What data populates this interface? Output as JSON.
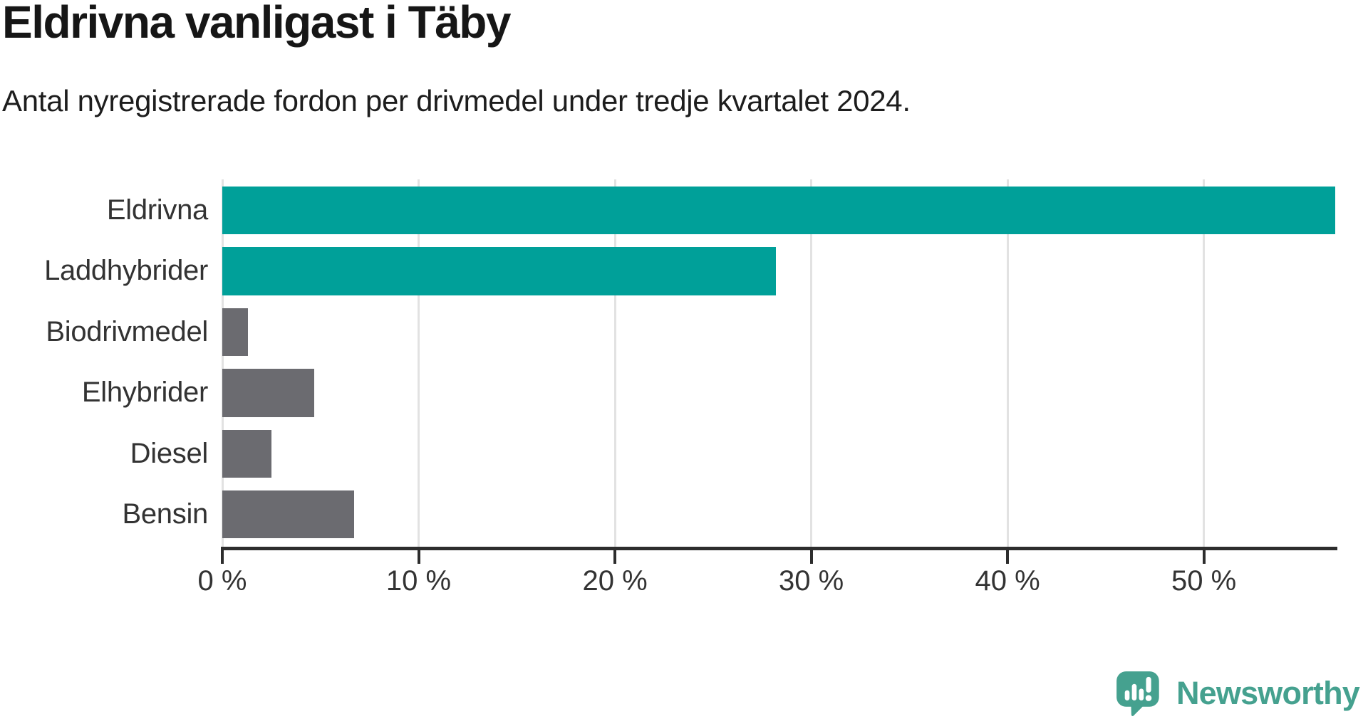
{
  "header": {
    "title": "Eldrivna vanligast i Täby",
    "subtitle": "Antal nyregistrerade fordon per drivmedel under tredje kvartalet 2024."
  },
  "chart_data": {
    "type": "bar",
    "orientation": "horizontal",
    "title": "Eldrivna vanligast i Täby",
    "subtitle": "Antal nyregistrerade fordon per drivmedel under tredje kvartalet 2024.",
    "categories": [
      "Eldrivna",
      "Laddhybrider",
      "Biodrivmedel",
      "Elhybrider",
      "Diesel",
      "Bensin"
    ],
    "values": [
      56.7,
      28.2,
      1.3,
      4.7,
      2.5,
      6.7
    ],
    "unit": "%",
    "xlabel": "",
    "ylabel": "",
    "xlim": [
      0,
      56.8
    ],
    "xticks": [
      0,
      10,
      20,
      30,
      40,
      50
    ],
    "xtick_labels": [
      "0 %",
      "10 %",
      "20 %",
      "30 %",
      "40 %",
      "50 %"
    ],
    "grid": "vertical-only",
    "legend": "none",
    "bar_colors": [
      "#00a099",
      "#00a099",
      "#6b6b70",
      "#6b6b70",
      "#6b6b70",
      "#6b6b70"
    ]
  },
  "colors": {
    "highlight": "#00a099",
    "muted": "#6b6b70",
    "grid": "#e2e2e2",
    "axis": "#2d2d2d",
    "label_text": "#333333",
    "title_text": "#161616",
    "logo": "#45a18f"
  },
  "footer": {
    "brand": "Newsworthy",
    "logo_icon": "newsworthy-bubble-chart-icon"
  }
}
